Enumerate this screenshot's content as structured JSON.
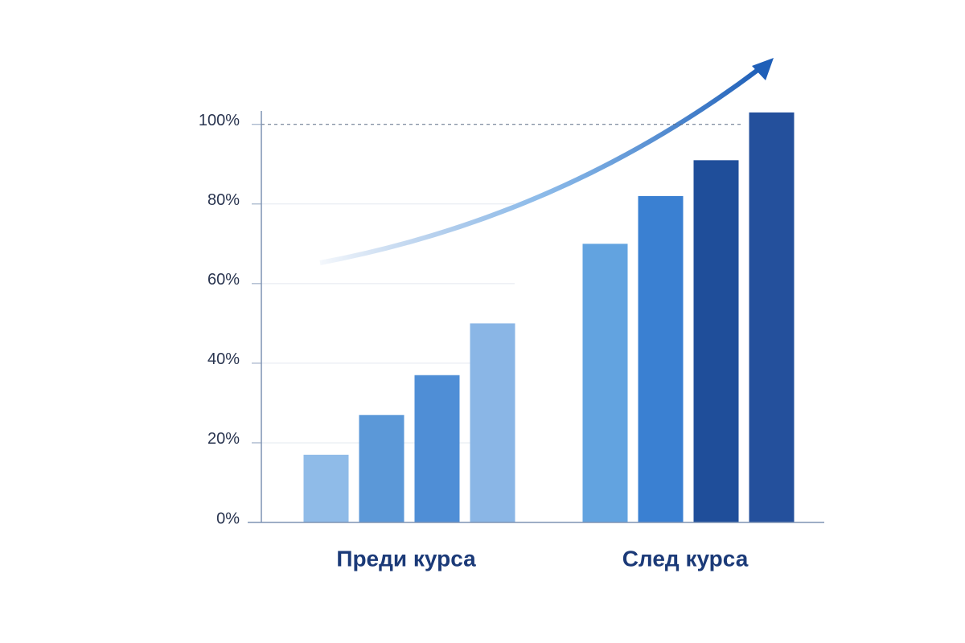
{
  "chart_data": {
    "type": "bar",
    "categories": [
      "Преди курса",
      "След курса"
    ],
    "series": [
      {
        "colors": [
          "#8fbbe8",
          "#62a3e0"
        ],
        "values": [
          17,
          70
        ]
      },
      {
        "colors": [
          "#5b98d8",
          "#3a80d2"
        ],
        "values": [
          27,
          82
        ]
      },
      {
        "colors": [
          "#4f8ed6",
          "#1f4e9a"
        ],
        "values": [
          37,
          91
        ]
      },
      {
        "colors": [
          "#8ab6e6",
          "#24509c"
        ],
        "values": [
          50,
          103
        ]
      }
    ],
    "ylim": [
      0,
      105
    ],
    "yticks": [
      {
        "value": 0,
        "label": "0%"
      },
      {
        "value": 20,
        "label": "20%"
      },
      {
        "value": 40,
        "label": "40%"
      },
      {
        "value": 60,
        "label": "60%"
      },
      {
        "value": 80,
        "label": "80%"
      },
      {
        "value": 100,
        "label": "100%"
      }
    ],
    "grid": true,
    "reference_line": 100
  }
}
